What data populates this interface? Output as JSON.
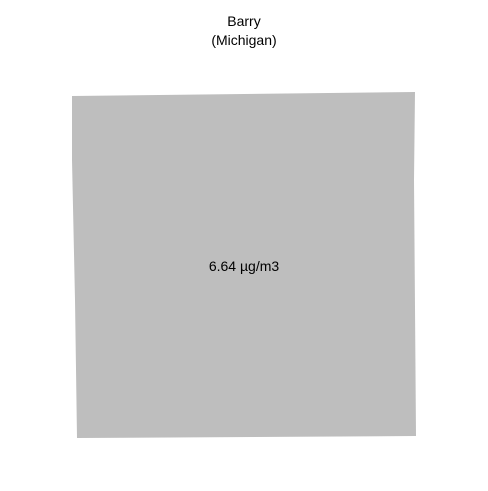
{
  "map": {
    "county": "Barry",
    "state": "(Michigan)",
    "value_label": "6.64 µg/m3",
    "fill_color": "#bebebe"
  }
}
